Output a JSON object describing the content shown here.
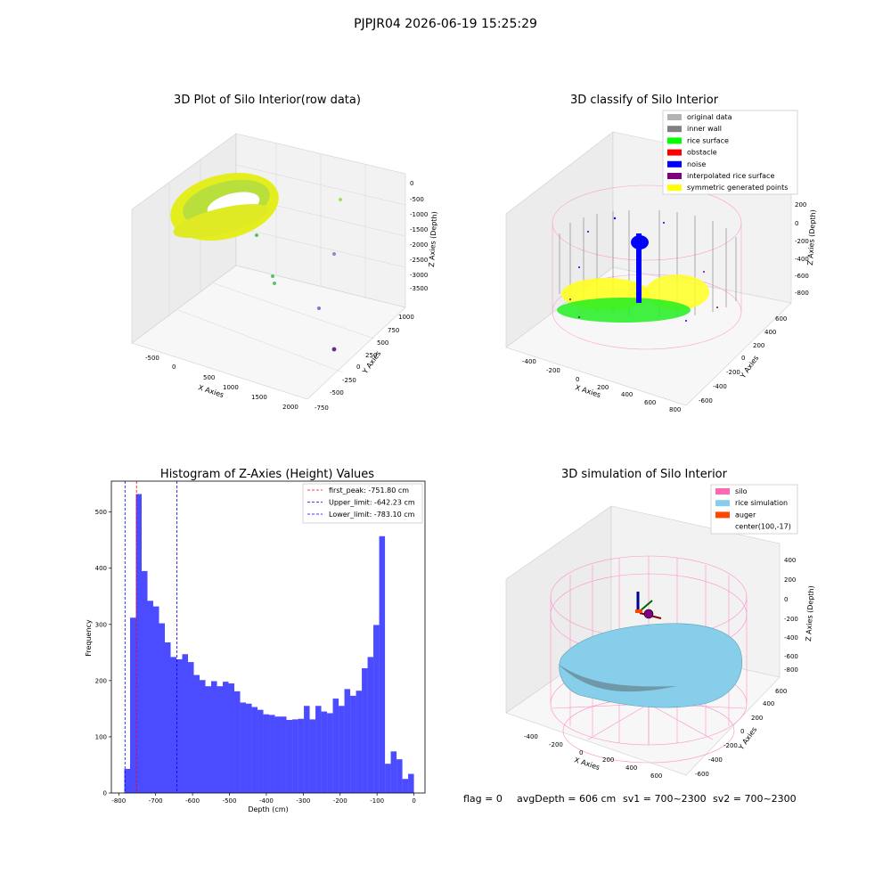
{
  "suptitle": "PJPJR04 2026-06-19 15:25:29",
  "panels": {
    "raw": {
      "title": "3D Plot of Silo Interior(row data)",
      "xlabel": "X Axies",
      "ylabel": "Y Axies",
      "zlabel": "Z Axies (Depth)",
      "xticks": [
        "-500",
        "0",
        "500",
        "1000",
        "1500",
        "2000"
      ],
      "yticks": [
        "-750",
        "-500",
        "-250",
        "0",
        "250",
        "500",
        "750",
        "1000"
      ],
      "zticks": [
        "0",
        "-500",
        "-1000",
        "-1500",
        "-2000",
        "-2500",
        "-3000",
        "-3500"
      ]
    },
    "classify": {
      "title": "3D classify of Silo Interior",
      "xlabel": "X Axies",
      "ylabel": "Y Axies",
      "zlabel": "Z Axies (Depth)",
      "xticks": [
        "-400",
        "-200",
        "0",
        "200",
        "400",
        "600",
        "800"
      ],
      "yticks": [
        "-600",
        "-400",
        "-200",
        "0",
        "200",
        "400",
        "600"
      ],
      "zticks": [
        "200",
        "0",
        "-200",
        "-400",
        "-600",
        "-800"
      ],
      "legend": [
        {
          "label": "original data",
          "color": "#b3b3b3"
        },
        {
          "label": "inner wall",
          "color": "#808080"
        },
        {
          "label": "rice surface",
          "color": "#00ff00"
        },
        {
          "label": "obstacle",
          "color": "#ff0000"
        },
        {
          "label": "noise",
          "color": "#0000ff"
        },
        {
          "label": "interpolated rice surface",
          "color": "#800080"
        },
        {
          "label": "symmetric generated points",
          "color": "#ffff00"
        }
      ]
    },
    "simulation": {
      "title": "3D simulation of Silo Interior",
      "xlabel": "X Axies",
      "ylabel": "Y Axies",
      "zlabel": "Z Axies (Depth)",
      "xticks": [
        "-400",
        "-200",
        "0",
        "200",
        "400",
        "600"
      ],
      "yticks": [
        "-600",
        "-400",
        "-200",
        "0",
        "200",
        "400",
        "600"
      ],
      "zticks": [
        "400",
        "200",
        "0",
        "-200",
        "-400",
        "-600",
        "-800"
      ],
      "legend": [
        {
          "label": "silo",
          "color": "#ff69b4"
        },
        {
          "label": "rice simulation",
          "color": "#87ceeb"
        },
        {
          "label": "auger",
          "color": "#ff4500"
        },
        {
          "label": "center(100,-17)",
          "color": ""
        }
      ]
    }
  },
  "footer": {
    "flag": "flag = 0",
    "avg": "avgDepth = 606 cm",
    "sv1": "sv1 = 700~2300",
    "sv2": "sv2 = 700~2300"
  },
  "chart_data": {
    "type": "bar",
    "title": "Histogram of Z-Axies (Height) Values",
    "xlabel": "Depth (cm)",
    "ylabel": "Frequency",
    "xlim": [
      -820,
      30
    ],
    "ylim": [
      0,
      555
    ],
    "xticks": [
      -800,
      -700,
      -600,
      -500,
      -400,
      -300,
      -200,
      -100,
      0
    ],
    "yticks": [
      0,
      100,
      200,
      300,
      400,
      500
    ],
    "bin_start": -785,
    "bin_width": 15.7,
    "values": [
      43,
      312,
      532,
      395,
      342,
      332,
      302,
      268,
      242,
      238,
      247,
      233,
      210,
      201,
      190,
      199,
      190,
      198,
      195,
      181,
      161,
      159,
      153,
      148,
      140,
      139,
      136,
      136,
      130,
      131,
      132,
      155,
      131,
      155,
      145,
      142,
      168,
      155,
      185,
      173,
      182,
      222,
      242,
      299,
      457,
      52,
      74,
      60,
      25,
      34
    ],
    "bar_color": "#4b4bff",
    "vlines": [
      {
        "label": "first_peak: -751.80 cm",
        "x": -751.8,
        "color": "#ff0000"
      },
      {
        "label": "Upper_limit: -642.23 cm",
        "x": -642.23,
        "color": "#0000ff"
      },
      {
        "label": "Lower_limit: -783.10 cm",
        "x": -783.1,
        "color": "#0000ff"
      }
    ],
    "legend_position": "upper right"
  }
}
